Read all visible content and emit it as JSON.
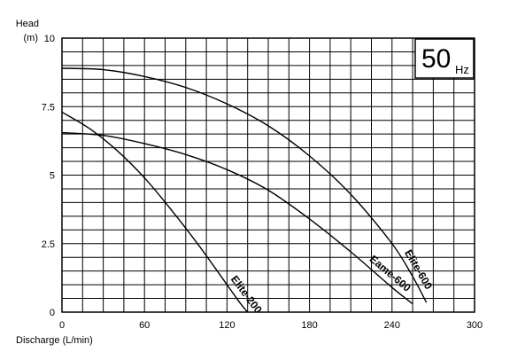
{
  "chart_data": {
    "type": "line",
    "title": "",
    "ylabel_line1": "Head",
    "ylabel_line2": "(m)",
    "xlabel": "Discharge  (L/min)",
    "xlim": [
      0,
      300
    ],
    "ylim": [
      0,
      10
    ],
    "x_ticks": [
      "0",
      "60",
      "120",
      "180",
      "240",
      "300"
    ],
    "y_ticks": [
      "0",
      "2.5",
      "5",
      "7.5",
      "10"
    ],
    "grid": true,
    "frequency_value": "50",
    "frequency_unit": "Hz",
    "series": [
      {
        "name": "Elite-200",
        "x": [
          0,
          20,
          40,
          60,
          80,
          100,
          120,
          130,
          135
        ],
        "y": [
          7.3,
          6.7,
          5.9,
          4.9,
          3.7,
          2.4,
          1.0,
          0.3,
          0.0
        ]
      },
      {
        "name": "Eame-600",
        "x": [
          0,
          30,
          60,
          90,
          120,
          150,
          180,
          210,
          240,
          255
        ],
        "y": [
          6.55,
          6.45,
          6.15,
          5.75,
          5.2,
          4.45,
          3.4,
          2.2,
          0.9,
          0.3
        ]
      },
      {
        "name": "Elite-600",
        "x": [
          0,
          30,
          60,
          90,
          120,
          150,
          180,
          210,
          240,
          255,
          265
        ],
        "y": [
          8.9,
          8.85,
          8.6,
          8.2,
          7.6,
          6.8,
          5.7,
          4.3,
          2.5,
          1.3,
          0.35
        ]
      }
    ]
  }
}
